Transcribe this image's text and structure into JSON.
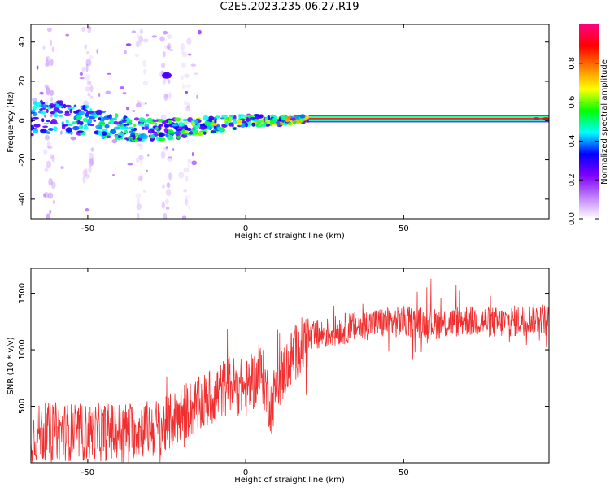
{
  "figure_title": "C2E5.2023.235.06.27.R19",
  "colors": {
    "snr_line": "#f03030",
    "axis": "#000000"
  },
  "chart_data": [
    {
      "type": "heatmap",
      "title": "C2E5.2023.235.06.27.R19",
      "xlabel": "Height of straight line (km)",
      "ylabel": "Frequency (Hz)",
      "xlim": [
        -68,
        96
      ],
      "ylim": [
        -50,
        49
      ],
      "x_ticks": [
        -50,
        0,
        50
      ],
      "y_ticks": [
        -40,
        -20,
        0,
        20,
        40
      ],
      "colorbar": {
        "label": "Normalized spectral amplitude",
        "ticks": [
          "0.0",
          "0.2",
          "0.4",
          "0.6",
          "0.8"
        ],
        "range": [
          0,
          1
        ],
        "colormap": [
          "#ffffff",
          "#c080ff",
          "#8000ff",
          "#0000ff",
          "#00ffff",
          "#00ff00",
          "#ffff00",
          "#ff8000",
          "#ff0000",
          "#ff0080"
        ]
      },
      "ridge": {
        "description_points": [
          [
            -68,
            1
          ],
          [
            -60,
            2
          ],
          [
            -50,
            0
          ],
          [
            -40,
            -4
          ],
          [
            -30,
            -5
          ],
          [
            -20,
            -4
          ],
          [
            -10,
            -2
          ],
          [
            0,
            0
          ],
          [
            10,
            0
          ],
          [
            20,
            1
          ],
          [
            96,
            1
          ]
        ],
        "peak_amplitude_from_km": 20
      }
    },
    {
      "type": "line",
      "xlabel": "Height of straight line (km)",
      "ylabel": "SNR (10 * v/v)",
      "xlim": [
        -68,
        96
      ],
      "ylim": [
        0,
        1720
      ],
      "x_ticks": [
        -50,
        0,
        50
      ],
      "y_ticks": [
        500,
        1000,
        1500
      ],
      "series": [
        {
          "x": [
            -68,
            -60,
            -50,
            -40,
            -30,
            -25,
            -20,
            -15,
            -10,
            -5,
            0,
            5,
            8,
            10,
            15,
            20,
            30,
            40,
            50,
            60,
            70,
            80,
            90,
            96
          ],
          "values": [
            250,
            280,
            260,
            280,
            300,
            330,
            450,
            500,
            600,
            700,
            650,
            800,
            500,
            700,
            950,
            1100,
            1180,
            1230,
            1250,
            1230,
            1260,
            1240,
            1270,
            1280
          ]
        }
      ]
    }
  ]
}
